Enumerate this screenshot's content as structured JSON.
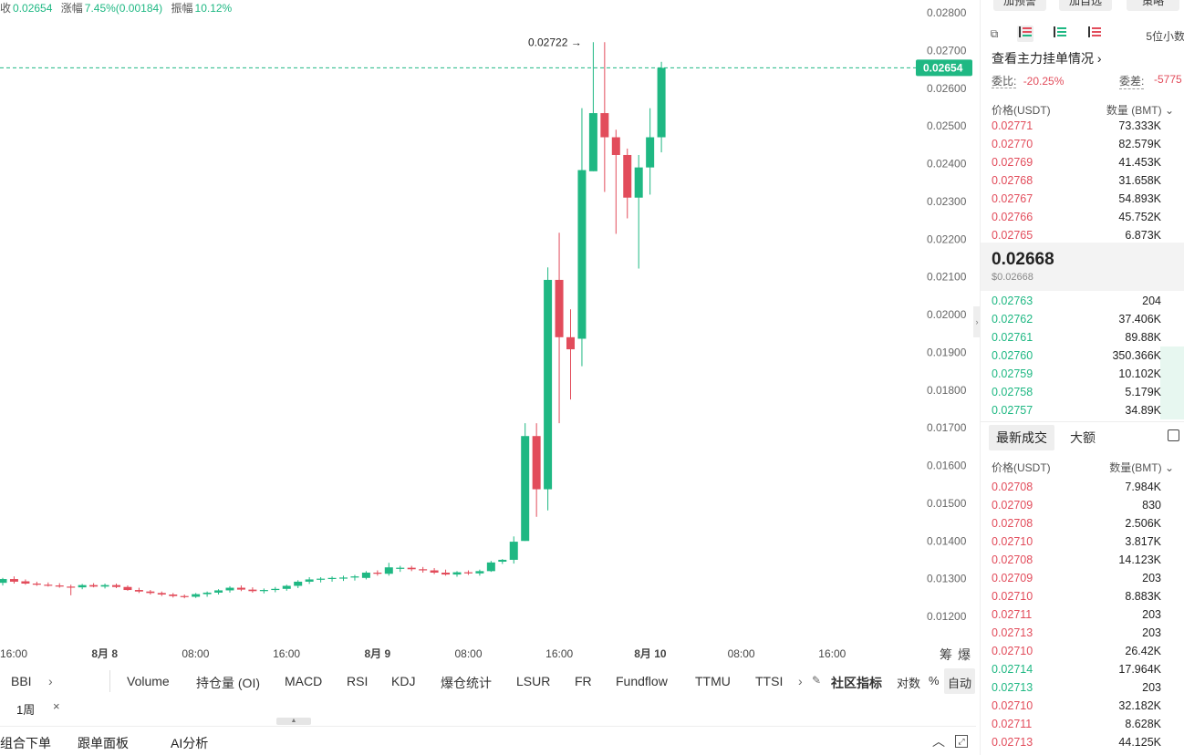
{
  "stats": {
    "close_label": "收",
    "close_value": "0.02654",
    "change_label": "涨幅",
    "change_value": "7.45%(0.00184)",
    "amplitude_label": "振幅",
    "amplitude_value": "10.12%"
  },
  "chart_data": {
    "type": "candlestick",
    "y_ticks": [
      "0.02800",
      "0.02700",
      "0.02600",
      "0.02500",
      "0.02400",
      "0.02300",
      "0.02200",
      "0.02100",
      "0.02000",
      "0.01900",
      "0.01800",
      "0.01700",
      "0.01600",
      "0.01500",
      "0.01400",
      "0.01300",
      "0.01200"
    ],
    "ylim": [
      0.0115,
      0.0283
    ],
    "x_ticks": [
      "16:00",
      "8月 8",
      "08:00",
      "16:00",
      "8月 9",
      "08:00",
      "16:00",
      "8月 10",
      "08:00",
      "16:00"
    ],
    "bold_x_ticks": [
      "8月 8",
      "8月 9",
      "8月 10"
    ],
    "current_price": "0.02654",
    "high_marker": "0.02722",
    "up_color": "#1fb883",
    "down_color": "#e24c5b",
    "candles": [
      {
        "o": 0.01289,
        "h": 0.01302,
        "l": 0.01282,
        "c": 0.01299
      },
      {
        "o": 0.01299,
        "h": 0.01306,
        "l": 0.01287,
        "c": 0.01292
      },
      {
        "o": 0.01293,
        "h": 0.01298,
        "l": 0.01284,
        "c": 0.01287
      },
      {
        "o": 0.01287,
        "h": 0.01292,
        "l": 0.01281,
        "c": 0.01284
      },
      {
        "o": 0.01284,
        "h": 0.0129,
        "l": 0.01279,
        "c": 0.01282
      },
      {
        "o": 0.01282,
        "h": 0.01288,
        "l": 0.01276,
        "c": 0.01279
      },
      {
        "o": 0.01279,
        "h": 0.01284,
        "l": 0.01256,
        "c": 0.01277
      },
      {
        "o": 0.01277,
        "h": 0.01286,
        "l": 0.01272,
        "c": 0.01283
      },
      {
        "o": 0.01283,
        "h": 0.01288,
        "l": 0.01277,
        "c": 0.01279
      },
      {
        "o": 0.01279,
        "h": 0.01287,
        "l": 0.01274,
        "c": 0.01283
      },
      {
        "o": 0.01283,
        "h": 0.01287,
        "l": 0.01275,
        "c": 0.01278
      },
      {
        "o": 0.01278,
        "h": 0.01282,
        "l": 0.01268,
        "c": 0.0127
      },
      {
        "o": 0.0127,
        "h": 0.01276,
        "l": 0.01262,
        "c": 0.01266
      },
      {
        "o": 0.01266,
        "h": 0.0127,
        "l": 0.01258,
        "c": 0.01262
      },
      {
        "o": 0.01262,
        "h": 0.01266,
        "l": 0.01254,
        "c": 0.01258
      },
      {
        "o": 0.01258,
        "h": 0.01262,
        "l": 0.0125,
        "c": 0.01254
      },
      {
        "o": 0.01254,
        "h": 0.01258,
        "l": 0.01248,
        "c": 0.01252
      },
      {
        "o": 0.01252,
        "h": 0.01262,
        "l": 0.01249,
        "c": 0.01259
      },
      {
        "o": 0.01259,
        "h": 0.01266,
        "l": 0.01252,
        "c": 0.01263
      },
      {
        "o": 0.01263,
        "h": 0.01272,
        "l": 0.01258,
        "c": 0.01269
      },
      {
        "o": 0.01269,
        "h": 0.0128,
        "l": 0.01263,
        "c": 0.01276
      },
      {
        "o": 0.01276,
        "h": 0.01282,
        "l": 0.01267,
        "c": 0.01271
      },
      {
        "o": 0.01271,
        "h": 0.01277,
        "l": 0.01263,
        "c": 0.01267
      },
      {
        "o": 0.01267,
        "h": 0.01274,
        "l": 0.01261,
        "c": 0.0127
      },
      {
        "o": 0.0127,
        "h": 0.01278,
        "l": 0.01264,
        "c": 0.01273
      },
      {
        "o": 0.01273,
        "h": 0.01284,
        "l": 0.01268,
        "c": 0.01281
      },
      {
        "o": 0.01281,
        "h": 0.01296,
        "l": 0.01275,
        "c": 0.01292
      },
      {
        "o": 0.01292,
        "h": 0.01304,
        "l": 0.01286,
        "c": 0.01298
      },
      {
        "o": 0.01298,
        "h": 0.01304,
        "l": 0.0129,
        "c": 0.013
      },
      {
        "o": 0.013,
        "h": 0.01306,
        "l": 0.01292,
        "c": 0.01302
      },
      {
        "o": 0.01302,
        "h": 0.01308,
        "l": 0.01294,
        "c": 0.01303
      },
      {
        "o": 0.01303,
        "h": 0.0131,
        "l": 0.01295,
        "c": 0.01306
      },
      {
        "o": 0.01302,
        "h": 0.0132,
        "l": 0.01298,
        "c": 0.01316
      },
      {
        "o": 0.01316,
        "h": 0.01322,
        "l": 0.01308,
        "c": 0.01313
      },
      {
        "o": 0.01313,
        "h": 0.01342,
        "l": 0.01308,
        "c": 0.0133
      },
      {
        "o": 0.01326,
        "h": 0.01334,
        "l": 0.01318,
        "c": 0.01329
      },
      {
        "o": 0.01329,
        "h": 0.01334,
        "l": 0.0132,
        "c": 0.01325
      },
      {
        "o": 0.01325,
        "h": 0.01331,
        "l": 0.01316,
        "c": 0.01322
      },
      {
        "o": 0.01322,
        "h": 0.01328,
        "l": 0.01312,
        "c": 0.01316
      },
      {
        "o": 0.01316,
        "h": 0.01324,
        "l": 0.01308,
        "c": 0.01311
      },
      {
        "o": 0.01311,
        "h": 0.0132,
        "l": 0.01305,
        "c": 0.01317
      },
      {
        "o": 0.01317,
        "h": 0.01322,
        "l": 0.0131,
        "c": 0.01314
      },
      {
        "o": 0.01314,
        "h": 0.01324,
        "l": 0.01308,
        "c": 0.0132
      },
      {
        "o": 0.0132,
        "h": 0.01347,
        "l": 0.01318,
        "c": 0.01343
      },
      {
        "o": 0.01345,
        "h": 0.01352,
        "l": 0.01339,
        "c": 0.0135
      },
      {
        "o": 0.0135,
        "h": 0.01412,
        "l": 0.0134,
        "c": 0.01398
      },
      {
        "o": 0.014,
        "h": 0.01712,
        "l": 0.014,
        "c": 0.01678
      },
      {
        "o": 0.01678,
        "h": 0.01712,
        "l": 0.01464,
        "c": 0.01537
      },
      {
        "o": 0.01537,
        "h": 0.02125,
        "l": 0.01481,
        "c": 0.02092
      },
      {
        "o": 0.02092,
        "h": 0.02217,
        "l": 0.01712,
        "c": 0.0194
      },
      {
        "o": 0.0194,
        "h": 0.02014,
        "l": 0.01775,
        "c": 0.01908
      },
      {
        "o": 0.01936,
        "h": 0.02547,
        "l": 0.01863,
        "c": 0.02383
      },
      {
        "o": 0.0238,
        "h": 0.02722,
        "l": 0.0238,
        "c": 0.02534
      },
      {
        "o": 0.02534,
        "h": 0.02722,
        "l": 0.02325,
        "c": 0.0247
      },
      {
        "o": 0.0247,
        "h": 0.0249,
        "l": 0.02214,
        "c": 0.02423
      },
      {
        "o": 0.02423,
        "h": 0.0244,
        "l": 0.02255,
        "c": 0.0231
      },
      {
        "o": 0.0231,
        "h": 0.02423,
        "l": 0.02122,
        "c": 0.0239
      },
      {
        "o": 0.0239,
        "h": 0.02547,
        "l": 0.02318,
        "c": 0.0247
      },
      {
        "o": 0.0247,
        "h": 0.0267,
        "l": 0.0243,
        "c": 0.02654
      }
    ]
  },
  "indicators": {
    "items": [
      "BBI",
      "Volume",
      "持仓量 (OI)",
      "MACD",
      "RSI",
      "KDJ",
      "爆仓统计",
      "LSUR",
      "FR",
      "Fundflow",
      "TTMU",
      "TTSI"
    ],
    "community_label": "社区指标",
    "log_label": "对数",
    "percent_label": "%",
    "auto_label": "自动",
    "period": "1周"
  },
  "bottom_tabs": [
    "组合下单",
    "跟单面板",
    "AI分析"
  ],
  "panel": {
    "buttons": [
      "加预警",
      "加自选",
      "策略"
    ],
    "digits_label": "5位小数",
    "main_orders_label": "查看主力挂单情况",
    "ratio_label": "委比:",
    "ratio_value": "-20.25%",
    "diff_label": "委差:",
    "diff_value": "-5775",
    "price_header": "价格(USDT)",
    "qty_header": "数量 (BMT)",
    "asks": [
      {
        "p": "0.02771",
        "q": "73.333K"
      },
      {
        "p": "0.02770",
        "q": "82.579K"
      },
      {
        "p": "0.02769",
        "q": "41.453K"
      },
      {
        "p": "0.02768",
        "q": "31.658K"
      },
      {
        "p": "0.02767",
        "q": "54.893K"
      },
      {
        "p": "0.02766",
        "q": "45.752K"
      },
      {
        "p": "0.02765",
        "q": "6.873K"
      }
    ],
    "mid_price": "0.02668",
    "mid_price_usd": "$0.02668",
    "bids": [
      {
        "p": "0.02763",
        "q": "204",
        "depth": 0.0
      },
      {
        "p": "0.02762",
        "q": "37.406K",
        "depth": 0.0
      },
      {
        "p": "0.02761",
        "q": "89.88K",
        "depth": 0.0
      },
      {
        "p": "0.02760",
        "q": "350.366K",
        "depth": 0.12
      },
      {
        "p": "0.02759",
        "q": "10.102K",
        "depth": 0.12
      },
      {
        "p": "0.02758",
        "q": "5.179K",
        "depth": 0.12
      },
      {
        "p": "0.02757",
        "q": "34.89K",
        "depth": 0.12
      }
    ],
    "trades_tab": "最新成交",
    "large_tab": "大额",
    "trade_price_header": "价格(USDT)",
    "trade_qty_header": "数量(BMT)",
    "trades": [
      {
        "p": "0.02708",
        "q": "7.984K",
        "side": "sell"
      },
      {
        "p": "0.02709",
        "q": "830",
        "side": "sell"
      },
      {
        "p": "0.02708",
        "q": "2.506K",
        "side": "sell"
      },
      {
        "p": "0.02710",
        "q": "3.817K",
        "side": "sell"
      },
      {
        "p": "0.02708",
        "q": "14.123K",
        "side": "sell"
      },
      {
        "p": "0.02709",
        "q": "203",
        "side": "sell"
      },
      {
        "p": "0.02710",
        "q": "8.883K",
        "side": "sell"
      },
      {
        "p": "0.02711",
        "q": "203",
        "side": "sell"
      },
      {
        "p": "0.02713",
        "q": "203",
        "side": "sell"
      },
      {
        "p": "0.02710",
        "q": "26.42K",
        "side": "sell"
      },
      {
        "p": "0.02714",
        "q": "17.964K",
        "side": "buy"
      },
      {
        "p": "0.02713",
        "q": "203",
        "side": "buy"
      },
      {
        "p": "0.02710",
        "q": "32.182K",
        "side": "sell"
      },
      {
        "p": "0.02711",
        "q": "8.628K",
        "side": "sell"
      },
      {
        "p": "0.02713",
        "q": "44.125K",
        "side": "sell"
      }
    ]
  }
}
